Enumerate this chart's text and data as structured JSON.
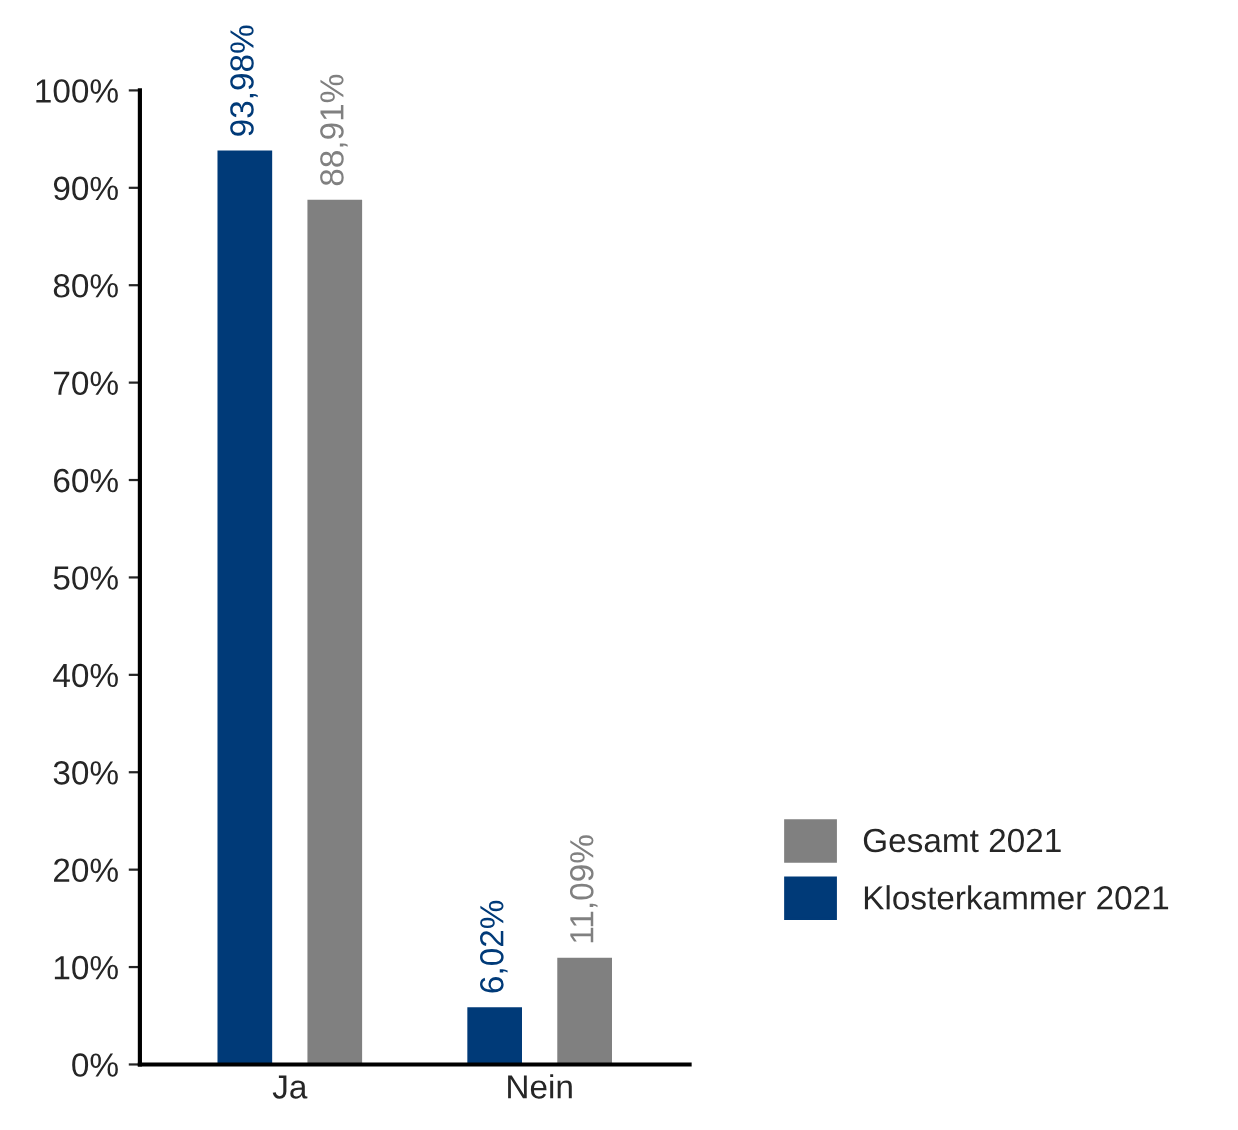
{
  "chart_data": {
    "type": "bar",
    "categories": [
      "Ja",
      "Nein"
    ],
    "series": [
      {
        "name": "Klosterkammer 2021",
        "color": "#003a78",
        "values": [
          93.98,
          6.02
        ],
        "value_labels": [
          "93,98%",
          "6,02%"
        ]
      },
      {
        "name": "Gesamt 2021",
        "color": "#808080",
        "values": [
          88.91,
          11.09
        ],
        "value_labels": [
          "88,91%",
          "11,09%"
        ]
      }
    ],
    "ylim": [
      0,
      100
    ],
    "yticks": [
      {
        "value": 0,
        "label": "0%"
      },
      {
        "value": 10,
        "label": "10%"
      },
      {
        "value": 20,
        "label": "20%"
      },
      {
        "value": 30,
        "label": "30%"
      },
      {
        "value": 40,
        "label": "40%"
      },
      {
        "value": 50,
        "label": "50%"
      },
      {
        "value": 60,
        "label": "60%"
      },
      {
        "value": 70,
        "label": "70%"
      },
      {
        "value": 80,
        "label": "80%"
      },
      {
        "value": 90,
        "label": "90%"
      },
      {
        "value": 100,
        "label": "100%"
      }
    ],
    "grid": false,
    "legend": "right"
  }
}
